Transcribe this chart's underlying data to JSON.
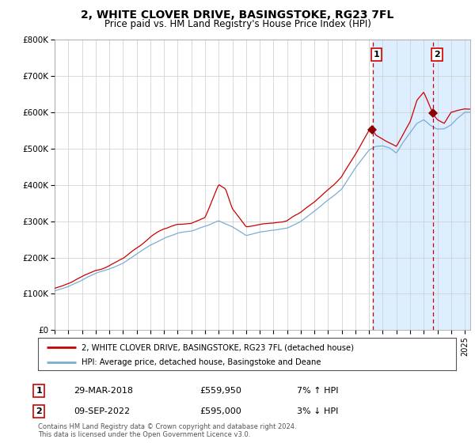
{
  "title": "2, WHITE CLOVER DRIVE, BASINGSTOKE, RG23 7FL",
  "subtitle": "Price paid vs. HM Land Registry's House Price Index (HPI)",
  "legend_line1": "2, WHITE CLOVER DRIVE, BASINGSTOKE, RG23 7FL (detached house)",
  "legend_line2": "HPI: Average price, detached house, Basingstoke and Deane",
  "sale1_date": "29-MAR-2018",
  "sale1_price": "£559,950",
  "sale1_hpi": "7% ↑ HPI",
  "sale2_date": "09-SEP-2022",
  "sale2_price": "£595,000",
  "sale2_hpi": "3% ↓ HPI",
  "footer": "Contains HM Land Registry data © Crown copyright and database right 2024.\nThis data is licensed under the Open Government Licence v3.0.",
  "red_color": "#cc0000",
  "blue_color": "#7aaed4",
  "shade_color": "#ddeeff",
  "sale1_year": 2018.25,
  "sale2_year": 2022.67,
  "ylim": [
    0,
    800000
  ],
  "xlim_start": 1995.0,
  "xlim_end": 2025.4,
  "yticks": [
    0,
    100000,
    200000,
    300000,
    400000,
    500000,
    600000,
    700000,
    800000
  ],
  "ytick_labels": [
    "£0",
    "£100K",
    "£200K",
    "£300K",
    "£400K",
    "£500K",
    "£600K",
    "£700K",
    "£800K"
  ],
  "xticks": [
    1995,
    1996,
    1997,
    1998,
    1999,
    2000,
    2001,
    2002,
    2003,
    2004,
    2005,
    2006,
    2007,
    2008,
    2009,
    2010,
    2011,
    2012,
    2013,
    2014,
    2015,
    2016,
    2017,
    2018,
    2019,
    2020,
    2021,
    2022,
    2023,
    2024,
    2025
  ],
  "hpi_anchors_x": [
    1995,
    1996,
    1997,
    1998,
    1999,
    2000,
    2001,
    2002,
    2003,
    2004,
    2005,
    2006,
    2007,
    2008,
    2009,
    2010,
    2011,
    2012,
    2013,
    2014,
    2015,
    2016,
    2017,
    2018,
    2018.5,
    2019,
    2019.5,
    2020,
    2020.5,
    2021,
    2021.5,
    2022,
    2022.5,
    2023,
    2023.5,
    2024,
    2024.5,
    2025
  ],
  "hpi_anchors_y": [
    108000,
    120000,
    138000,
    155000,
    168000,
    182000,
    208000,
    232000,
    252000,
    268000,
    274000,
    285000,
    300000,
    282000,
    260000,
    270000,
    274000,
    280000,
    300000,
    328000,
    360000,
    392000,
    450000,
    500000,
    510000,
    510000,
    505000,
    490000,
    520000,
    545000,
    570000,
    580000,
    565000,
    555000,
    555000,
    565000,
    585000,
    600000
  ],
  "prop_anchors_x": [
    1995,
    1996,
    1997,
    1998,
    1999,
    2000,
    2001,
    2002,
    2003,
    2004,
    2005,
    2006,
    2007,
    2007.5,
    2008,
    2009,
    2010,
    2011,
    2012,
    2013,
    2014,
    2015,
    2016,
    2017,
    2018,
    2018.25,
    2018.5,
    2019,
    2019.5,
    2020,
    2020.5,
    2021,
    2021.5,
    2022,
    2022.67,
    2023,
    2023.5,
    2024,
    2024.5,
    2025
  ],
  "prop_anchors_y": [
    115000,
    130000,
    150000,
    168000,
    180000,
    200000,
    228000,
    258000,
    285000,
    300000,
    302000,
    318000,
    408000,
    395000,
    340000,
    288000,
    292000,
    296000,
    305000,
    328000,
    358000,
    393000,
    428000,
    492000,
    558000,
    559950,
    545000,
    535000,
    525000,
    515000,
    545000,
    578000,
    635000,
    655000,
    595000,
    580000,
    570000,
    600000,
    605000,
    610000
  ]
}
